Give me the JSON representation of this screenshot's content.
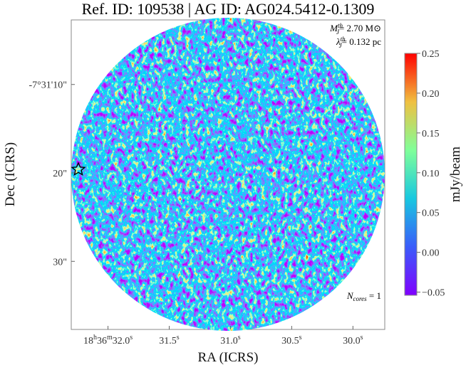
{
  "chart_data": {
    "type": "image",
    "title": "Ref. ID: 109538 | AG ID: AG024.5412-0.1309",
    "x_label": "RA (ICRS)",
    "y_label": "Dec (ICRS)",
    "colorbar_label": "mJy/beam",
    "xlim": [
      32.3,
      29.74
    ],
    "xticks": [
      {
        "value": 32.0,
        "label": "18h36m32.0s"
      },
      {
        "value": 31.5,
        "label": "31.5s"
      },
      {
        "value": 31.0,
        "label": "31.0s"
      },
      {
        "value": 30.5,
        "label": "30.5s"
      },
      {
        "value": 30.0,
        "label": "30.0s"
      }
    ],
    "ylim": [
      -37.7,
      -2.7
    ],
    "yticks": [
      {
        "value": -10,
        "label": "-7°31'10\""
      },
      {
        "value": -20,
        "label": "20\""
      },
      {
        "value": -30,
        "label": "30\""
      }
    ],
    "clim": [
      -0.054,
      0.25
    ],
    "cticks": [
      {
        "value": 0.25,
        "label": "0.25"
      },
      {
        "value": 0.2,
        "label": "0.20"
      },
      {
        "value": 0.15,
        "label": "0.15"
      },
      {
        "value": 0.1,
        "label": "0.10"
      },
      {
        "value": 0.05,
        "label": "0.05"
      },
      {
        "value": 0,
        "label": "0.00"
      },
      {
        "value": -0.05,
        "label": "−0.05"
      }
    ],
    "annotations": {
      "mass": {
        "symbol": "M",
        "sub": "J",
        "sup": "th",
        "text": "= 2.70 M⊙"
      },
      "length": {
        "symbol": "λ",
        "sub": "J",
        "sup": "th",
        "text": "= 0.132 pc"
      },
      "cores": {
        "symbol": "N",
        "sub": "cores",
        "text": " = 1"
      }
    }
  }
}
